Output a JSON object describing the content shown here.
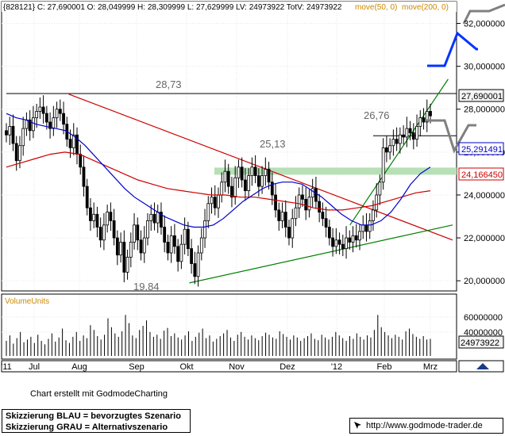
{
  "header": {
    "info": "{828121} C: 27,690001 O: 28,049999 H: 28,309999 L: 27,629999 LV: 24973922 TotV: 24973922",
    "ma50": "move(50, 0)",
    "ma200": "move(200, 0)"
  },
  "volume": {
    "title": "VolumeUnits"
  },
  "footer": {
    "credit": "Chart erstellt mit GodmodeCharting",
    "legend_blue": "Skizzierung BLAU = bevorzugtes Szenario",
    "legend_gray": "Skizzierung GRAU = Alternativszenario",
    "url": "http://www.godmode-trader.de"
  },
  "colors": {
    "price": "#000000",
    "ma50": "#0000cc",
    "ma200": "#cc0000",
    "support_line": "#008000",
    "resistance_line": "#cc0000",
    "zone": "#b7e0b7",
    "scenario_blue": "#0033ff",
    "scenario_gray": "#808080"
  },
  "chart_data": [
    {
      "type": "candlestick",
      "x_ticks": [
        "'11",
        "Jul",
        "Aug",
        "Sep",
        "Okt",
        "Nov",
        "Dez",
        "'12",
        "Feb",
        "Mrz"
      ],
      "y_ticks": [
        "20,000000",
        "22,000000",
        "24,000000",
        "26,000000",
        "28,000000",
        "30,000000",
        "32,000000"
      ],
      "ylim": [
        19.6,
        32.5
      ],
      "annotations": [
        "28,73",
        "26,76",
        "25,13",
        "19,84"
      ],
      "last_price": "27,690001",
      "ma50_value": "25,291491",
      "ma200_value": "24,166450",
      "resistance_level": 28.73,
      "level_2676": 26.76,
      "zone_level": 25.13,
      "low_level": 19.84,
      "price_series": [
        26.8,
        27.2,
        26.4,
        25.6,
        26.3,
        27.1,
        27.5,
        27.0,
        27.6,
        27.9,
        28.1,
        27.8,
        27.4,
        27.1,
        27.6,
        28.0,
        27.8,
        27.3,
        26.6,
        26.2,
        26.8,
        25.9,
        25.3,
        24.4,
        23.4,
        22.8,
        23.1,
        22.5,
        21.9,
        22.6,
        23.2,
        22.8,
        22.0,
        21.2,
        21.8,
        20.4,
        21.1,
        21.8,
        22.6,
        21.9,
        21.3,
        22.0,
        22.8,
        23.1,
        22.7,
        23.2,
        22.5,
        21.8,
        21.3,
        22.1,
        21.6,
        20.9,
        21.7,
        22.4,
        21.5,
        20.8,
        20.2,
        21.3,
        22.0,
        22.8,
        23.6,
        23.9,
        23.4,
        24.0,
        24.6,
        25.1,
        24.4,
        23.9,
        24.8,
        25.3,
        24.7,
        24.2,
        24.9,
        25.3,
        24.9,
        24.4,
        24.9,
        25.2,
        24.6,
        24.0,
        23.3,
        22.8,
        23.2,
        22.5,
        22.0,
        22.9,
        23.4,
        24.0,
        23.8,
        23.3,
        23.9,
        24.3,
        23.7,
        23.2,
        22.9,
        22.5,
        22.0,
        21.6,
        21.9,
        21.7,
        21.5,
        22.0,
        21.8,
        22.1,
        21.9,
        22.3,
        22.6,
        22.3,
        22.8,
        23.3,
        24.0,
        24.6,
        26.2,
        26.0,
        26.3,
        26.6,
        26.4,
        26.8,
        26.7,
        27.1,
        26.9,
        26.6,
        27.2,
        27.6,
        27.4,
        27.9,
        27.69
      ],
      "ma50_series": [
        27.8,
        27.6,
        27.5,
        27.3,
        27.2,
        27.1,
        27.0,
        26.7,
        26.3,
        25.8,
        25.3,
        24.8,
        24.3,
        23.9,
        23.6,
        23.3,
        23.0,
        22.8,
        22.6,
        22.5,
        22.5,
        22.6,
        22.9,
        23.3,
        23.7,
        24.0,
        24.3,
        24.5,
        24.6,
        24.6,
        24.5,
        24.2,
        23.9,
        23.5,
        23.1,
        22.8,
        22.6,
        22.6,
        22.8,
        23.2,
        23.8,
        24.5,
        25.0,
        25.3
      ],
      "ma200_series": [
        25.3,
        25.5,
        25.7,
        25.9,
        26.0,
        25.9,
        25.6,
        25.3,
        25.0,
        24.7,
        24.5,
        24.3,
        24.2,
        24.1,
        24.0,
        24.0,
        23.9,
        23.9,
        23.8,
        23.7,
        23.6,
        23.4,
        23.3,
        23.3,
        23.4,
        23.5,
        23.7,
        23.9,
        24.1,
        24.2
      ],
      "resistance_trendline": [
        [
          0.14,
          28.7
        ],
        [
          1.0,
          21.9
        ]
      ],
      "support_trendline": [
        [
          0.41,
          19.9
        ],
        [
          1.0,
          22.6
        ]
      ],
      "short_trendline": [
        [
          0.77,
          22.6
        ],
        [
          0.99,
          29.4
        ]
      ]
    },
    {
      "type": "bar",
      "title": "VolumeUnits",
      "y_ticks": [
        "40000000",
        "60000000"
      ],
      "ylim": [
        0,
        80000000
      ],
      "last_volume": "24973922",
      "values": [
        22,
        30,
        18,
        26,
        35,
        20,
        24,
        28,
        19,
        31,
        22,
        17,
        25,
        33,
        21,
        27,
        40,
        23,
        19,
        28,
        35,
        22,
        30,
        26,
        45,
        38,
        29,
        24,
        31,
        55,
        42,
        33,
        28,
        36,
        60,
        48,
        30,
        26,
        38,
        44,
        52,
        35,
        28,
        31,
        25,
        37,
        41,
        29,
        33,
        27,
        24,
        30,
        36,
        22,
        28,
        34,
        40,
        26,
        30,
        21,
        25,
        29,
        33,
        38,
        27,
        22,
        31,
        35,
        28,
        24,
        30,
        26,
        23,
        29,
        34,
        31,
        27,
        25,
        36,
        32,
        28,
        24,
        30,
        27,
        22,
        26,
        29,
        33,
        25,
        23,
        31,
        27,
        24,
        28,
        35,
        30,
        26,
        22,
        29,
        25,
        33,
        28,
        24,
        30,
        27,
        38,
        60,
        42,
        35,
        30,
        26,
        31,
        28,
        24,
        36,
        40,
        32,
        28,
        25,
        29,
        24,
        25
      ]
    }
  ]
}
